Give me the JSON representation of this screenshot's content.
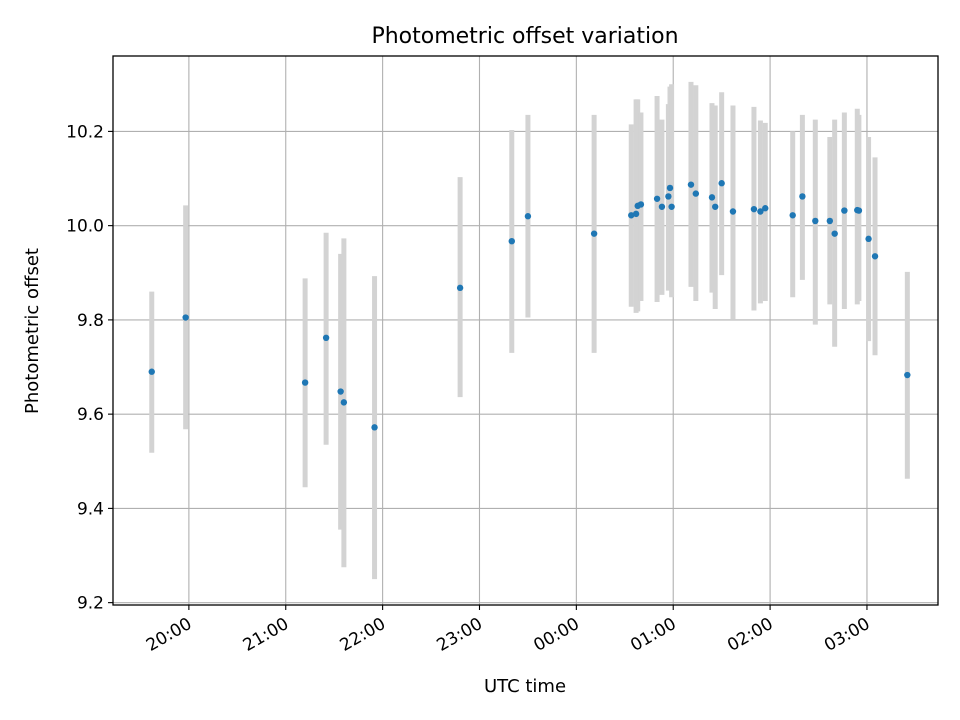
{
  "chart_data": {
    "type": "scatter",
    "title": "Photometric offset variation",
    "xlabel": "UTC time",
    "ylabel": "Photometric offset",
    "x_is_time": true,
    "xlim": [
      "19:13",
      "03:44"
    ],
    "ylim": [
      9.195,
      10.36
    ],
    "grid": true,
    "x_ticks": [
      "20:00",
      "21:00",
      "22:00",
      "23:00",
      "00:00",
      "01:00",
      "02:00",
      "03:00"
    ],
    "y_ticks": [
      "9.2",
      "9.4",
      "9.6",
      "9.8",
      "10.0",
      "10.2"
    ],
    "point_color": "#1f77b4",
    "errorbar_color": "#d3d3d3",
    "series": [
      {
        "points": [
          {
            "x": "19:37",
            "y": 9.69,
            "ylow": 9.518,
            "yhigh": 9.86
          },
          {
            "x": "19:58",
            "y": 9.805,
            "ylow": 9.568,
            "yhigh": 10.043
          },
          {
            "x": "21:12",
            "y": 9.667,
            "ylow": 9.445,
            "yhigh": 9.888
          },
          {
            "x": "21:25",
            "y": 9.762,
            "ylow": 9.535,
            "yhigh": 9.985
          },
          {
            "x": "21:34",
            "y": 9.648,
            "ylow": 9.355,
            "yhigh": 9.94
          },
          {
            "x": "21:36",
            "y": 9.625,
            "ylow": 9.275,
            "yhigh": 9.973
          },
          {
            "x": "21:55",
            "y": 9.572,
            "ylow": 9.25,
            "yhigh": 9.893
          },
          {
            "x": "22:48",
            "y": 9.868,
            "ylow": 9.636,
            "yhigh": 10.103
          },
          {
            "x": "23:20",
            "y": 9.967,
            "ylow": 9.73,
            "yhigh": 10.203
          },
          {
            "x": "23:30",
            "y": 10.02,
            "ylow": 9.805,
            "yhigh": 10.235
          },
          {
            "x": "00:11",
            "y": 9.983,
            "ylow": 9.73,
            "yhigh": 10.235
          },
          {
            "x": "00:34",
            "y": 10.022,
            "ylow": 9.828,
            "yhigh": 10.215
          },
          {
            "x": "00:37",
            "y": 10.025,
            "ylow": 9.815,
            "yhigh": 10.268
          },
          {
            "x": "00:38",
            "y": 10.042,
            "ylow": 9.818,
            "yhigh": 10.268
          },
          {
            "x": "00:40",
            "y": 10.045,
            "ylow": 9.84,
            "yhigh": 10.24
          },
          {
            "x": "00:50",
            "y": 10.057,
            "ylow": 9.838,
            "yhigh": 10.275
          },
          {
            "x": "00:53",
            "y": 10.04,
            "ylow": 9.853,
            "yhigh": 10.225
          },
          {
            "x": "00:57",
            "y": 10.062,
            "ylow": 9.862,
            "yhigh": 10.258
          },
          {
            "x": "00:58",
            "y": 10.08,
            "ylow": 9.868,
            "yhigh": 10.295
          },
          {
            "x": "00:59",
            "y": 10.04,
            "ylow": 9.848,
            "yhigh": 10.3
          },
          {
            "x": "01:11",
            "y": 10.087,
            "ylow": 9.87,
            "yhigh": 10.305
          },
          {
            "x": "01:14",
            "y": 10.068,
            "ylow": 9.84,
            "yhigh": 10.298
          },
          {
            "x": "01:24",
            "y": 10.06,
            "ylow": 9.858,
            "yhigh": 10.26
          },
          {
            "x": "01:26",
            "y": 10.04,
            "ylow": 9.823,
            "yhigh": 10.255
          },
          {
            "x": "01:30",
            "y": 10.09,
            "ylow": 9.895,
            "yhigh": 10.283
          },
          {
            "x": "01:37",
            "y": 10.03,
            "ylow": 9.8,
            "yhigh": 10.255
          },
          {
            "x": "01:50",
            "y": 10.035,
            "ylow": 9.82,
            "yhigh": 10.252
          },
          {
            "x": "01:54",
            "y": 10.03,
            "ylow": 9.835,
            "yhigh": 10.223
          },
          {
            "x": "01:57",
            "y": 10.037,
            "ylow": 9.84,
            "yhigh": 10.218
          },
          {
            "x": "02:14",
            "y": 10.022,
            "ylow": 9.848,
            "yhigh": 10.2
          },
          {
            "x": "02:20",
            "y": 10.062,
            "ylow": 9.885,
            "yhigh": 10.235
          },
          {
            "x": "02:28",
            "y": 10.01,
            "ylow": 9.79,
            "yhigh": 10.225
          },
          {
            "x": "02:37",
            "y": 10.01,
            "ylow": 9.833,
            "yhigh": 10.188
          },
          {
            "x": "02:40",
            "y": 9.983,
            "ylow": 9.743,
            "yhigh": 10.225
          },
          {
            "x": "02:46",
            "y": 10.032,
            "ylow": 9.823,
            "yhigh": 10.24
          },
          {
            "x": "02:54",
            "y": 10.033,
            "ylow": 9.833,
            "yhigh": 10.248
          },
          {
            "x": "02:55",
            "y": 10.032,
            "ylow": 9.84,
            "yhigh": 10.235
          },
          {
            "x": "03:01",
            "y": 9.972,
            "ylow": 9.755,
            "yhigh": 10.188
          },
          {
            "x": "03:05",
            "y": 9.935,
            "ylow": 9.725,
            "yhigh": 10.145
          },
          {
            "x": "03:25",
            "y": 9.683,
            "ylow": 9.463,
            "yhigh": 9.902
          }
        ]
      }
    ]
  }
}
